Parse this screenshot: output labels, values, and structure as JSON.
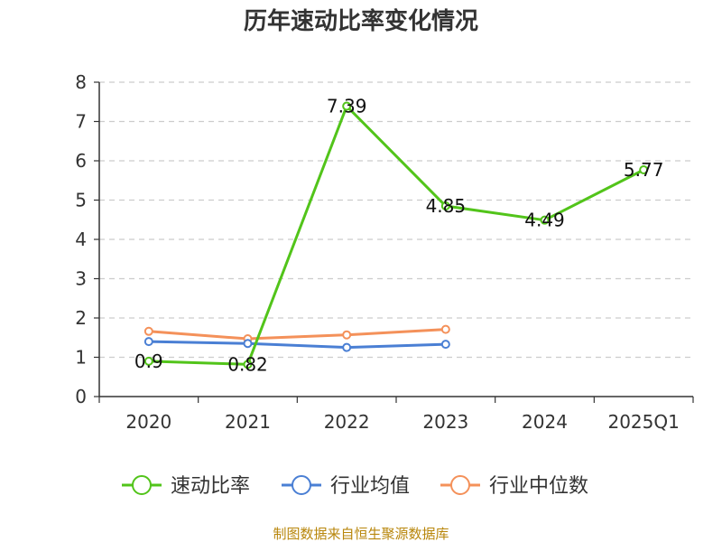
{
  "chart_data": {
    "type": "line",
    "title": "历年速动比率变化情况",
    "categories": [
      "2020",
      "2021",
      "2022",
      "2023",
      "2024",
      "2025Q1"
    ],
    "ylim": [
      0,
      8
    ],
    "yticks": [
      0,
      1,
      2,
      3,
      4,
      5,
      6,
      7,
      8
    ],
    "grid": true,
    "legend_position": "bottom",
    "series": [
      {
        "name": "速动比率",
        "color": "#52c41a",
        "values": [
          0.9,
          0.82,
          7.39,
          4.85,
          4.49,
          5.77
        ],
        "labels": [
          "0.9",
          "0.82",
          "7.39",
          "4.85",
          "4.49",
          "5.77"
        ],
        "show_labels": true
      },
      {
        "name": "行业均值",
        "color": "#4a7fd4",
        "values": [
          1.4,
          1.35,
          1.25,
          1.33,
          null,
          null
        ],
        "show_labels": false
      },
      {
        "name": "行业中位数",
        "color": "#f4915a",
        "values": [
          1.66,
          1.47,
          1.57,
          1.71,
          null,
          null
        ],
        "show_labels": false
      }
    ]
  },
  "source": "制图数据来自恒生聚源数据库"
}
